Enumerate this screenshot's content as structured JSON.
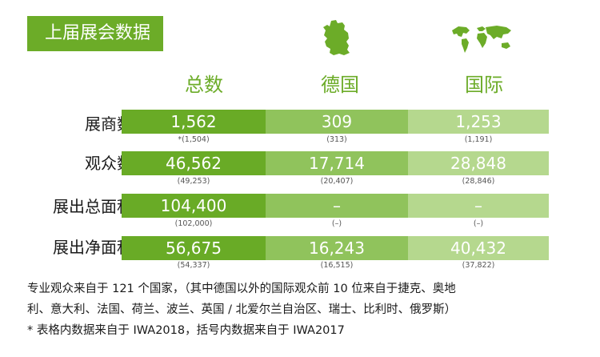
{
  "title": "上届展会数据",
  "columns": {
    "total": "总数",
    "germany": "德国",
    "international": "国际"
  },
  "icons": {
    "germany": "germany-map-icon",
    "world": "world-map-icon"
  },
  "colors": {
    "accent": "#6cac28",
    "col_total": "#69ab26",
    "col_germany": "#90c35c",
    "col_international": "#b5d88e"
  },
  "rows": [
    {
      "label": "展商数",
      "total": "1,562",
      "germany": "309",
      "international": "1,253",
      "total_prev": "*(1,504)",
      "germany_prev": "(313)",
      "international_prev": "(1,191)"
    },
    {
      "label": "观众数",
      "total": "46,562",
      "germany": "17,714",
      "international": "28,848",
      "total_prev": "(49,253)",
      "germany_prev": "(20,407)",
      "international_prev": "(28,846)"
    },
    {
      "label": "展出总面积",
      "total": "104,400",
      "germany": "–",
      "international": "–",
      "total_prev": "(102,000)",
      "germany_prev": "(–)",
      "international_prev": "(–)"
    },
    {
      "label": "展出净面积",
      "total": "56,675",
      "germany": "16,243",
      "international": "40,432",
      "total_prev": "(54,337)",
      "germany_prev": "(16,515)",
      "international_prev": "(37,822)"
    }
  ],
  "notes": {
    "line1": "专业观众来自于 121 个国家，（其中德国以外的国际观众前 10 位来自于捷克、奥地",
    "line2": "利、意大利、法国、荷兰、波兰、英国 / 北爱尔兰自治区、瑞士、比利时、俄罗斯）",
    "line3": "* 表格内数据来自于 IWA2018，括号内数据来自于 IWA2017"
  }
}
